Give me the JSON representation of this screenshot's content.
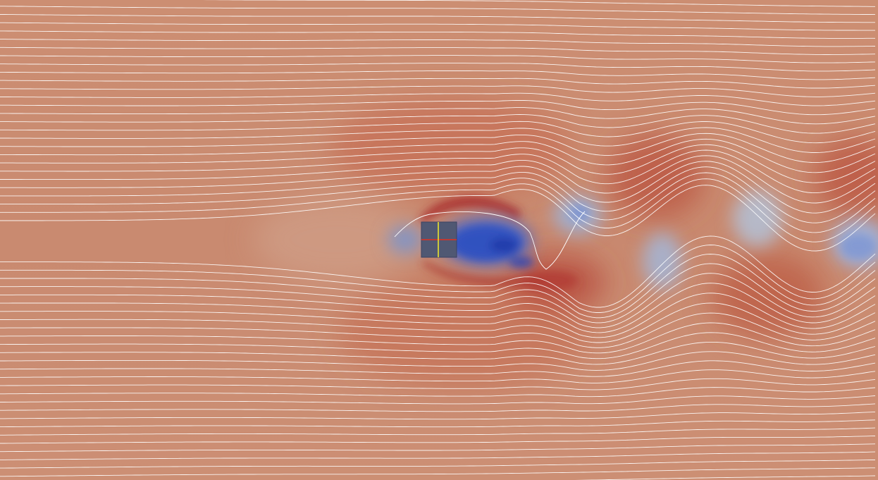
{
  "scene": {
    "description_free": true,
    "colormap": {
      "free_stream": "#cb8d72",
      "high_velocity": "#b8453a",
      "low_velocity": "#3f57b8",
      "mid": "#c9c2bb"
    },
    "streamline_color": "#ffffff",
    "obstacle": {
      "fill": "#505873",
      "axis_x_color": "#e03020",
      "axis_y_color": "#f4ee2a"
    }
  }
}
